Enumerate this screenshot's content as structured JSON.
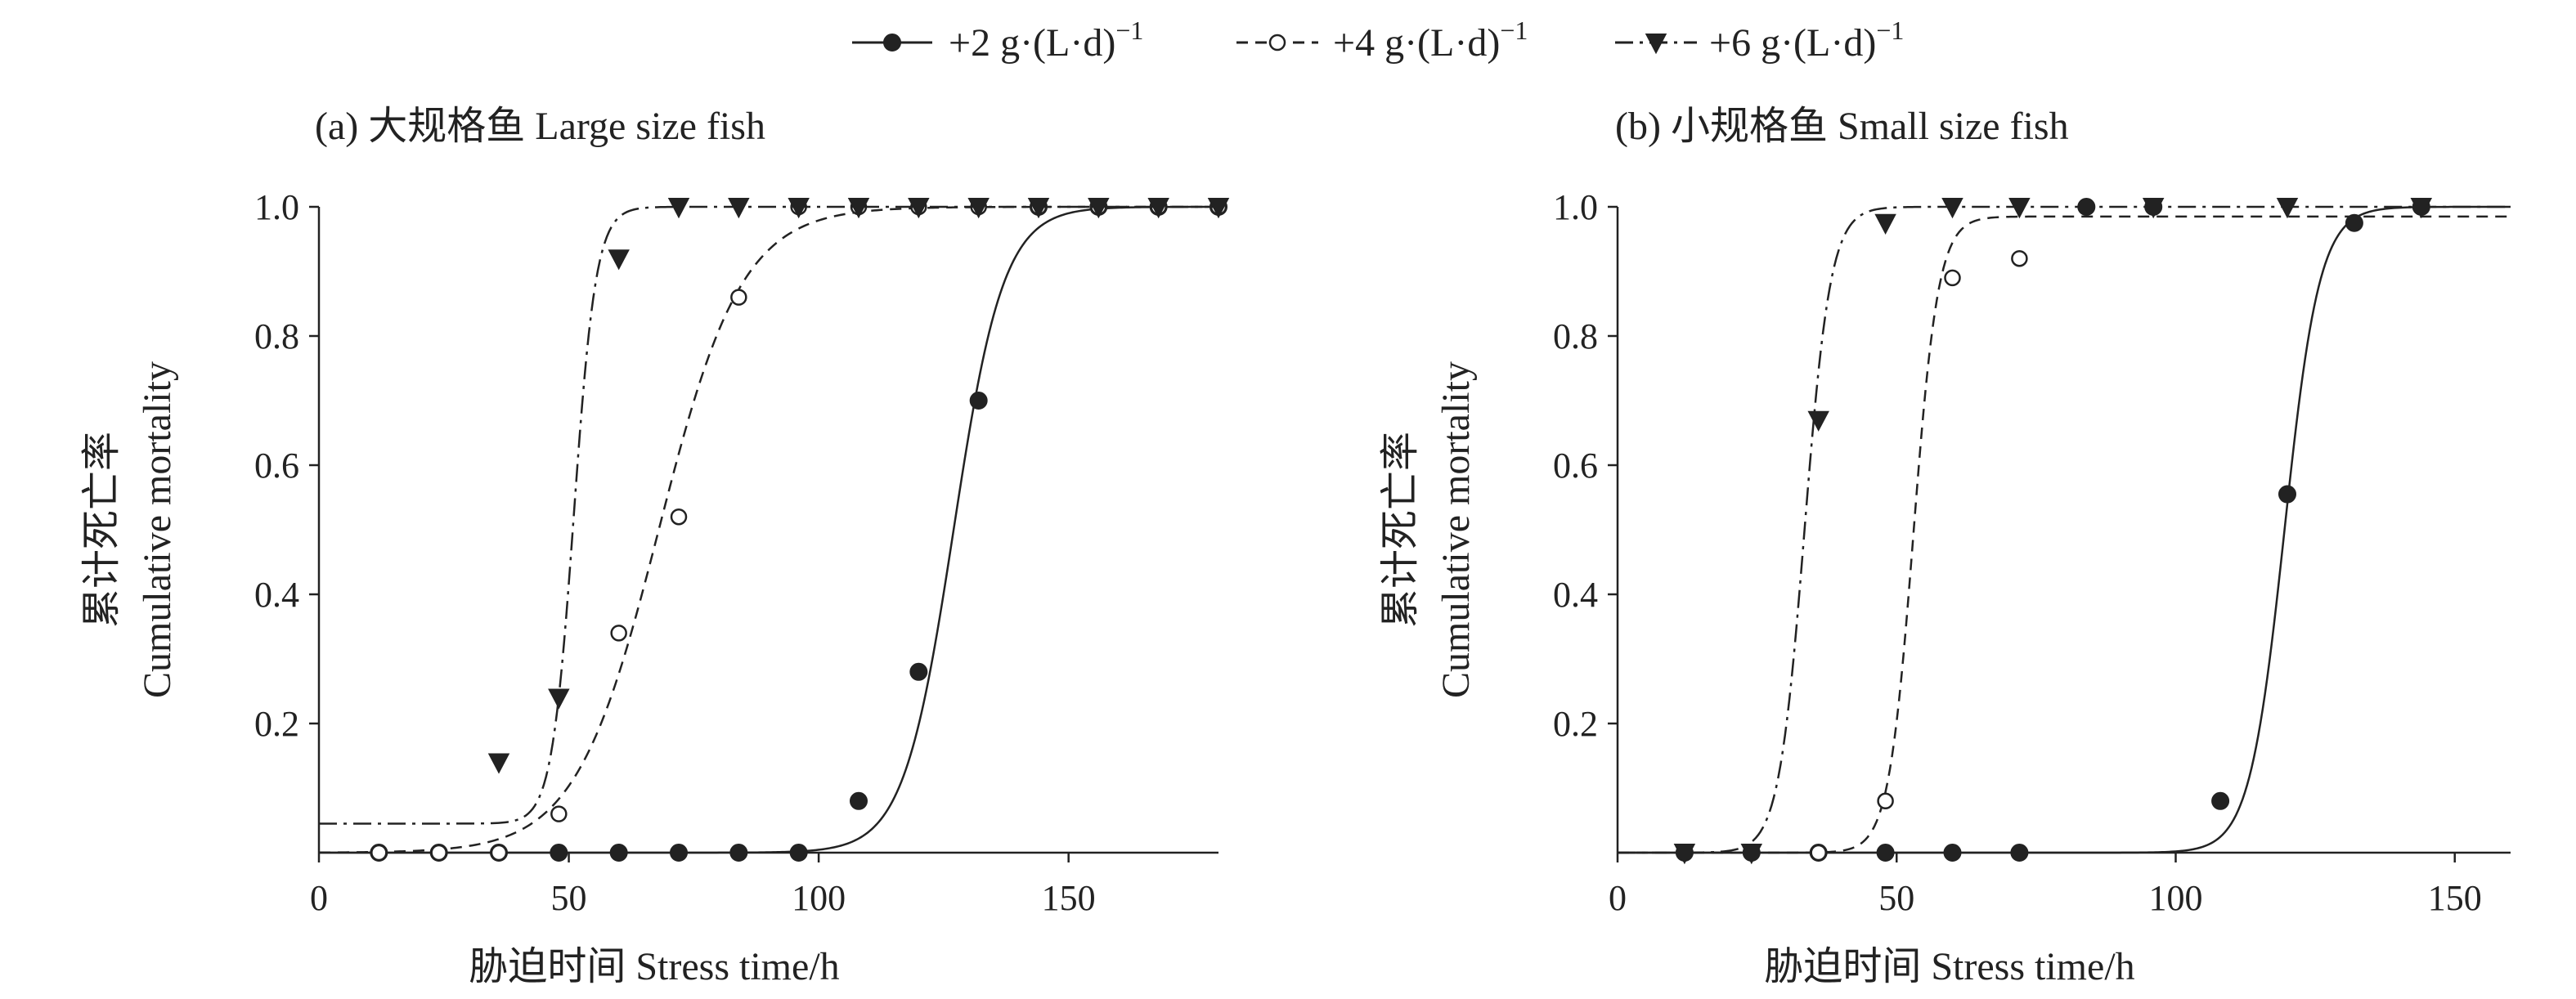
{
  "legend": [
    {
      "key": "g2",
      "label": "+2 g·(L·d)",
      "exponent": "−1",
      "marker": "filled-circle",
      "line": "solid"
    },
    {
      "key": "g4",
      "label": "+4 g·(L·d)",
      "exponent": "−1",
      "marker": "open-circle",
      "line": "dashed"
    },
    {
      "key": "g6",
      "label": "+6 g·(L·d)",
      "exponent": "−1",
      "marker": "filled-triangle",
      "line": "dashdot"
    }
  ],
  "chart_data": [
    {
      "type": "scatter",
      "title": "(a) 大规格鱼 Large size fish",
      "xlabel": "胁迫时间 Stress time/h",
      "ylabel_cn": "累计死亡率",
      "ylabel_en": "Cumulative mortality",
      "xlim": [
        0,
        180
      ],
      "ylim": [
        0,
        1.0
      ],
      "xticks": [
        0,
        50,
        100,
        150
      ],
      "xtick_labels": [
        "0",
        "50",
        "100",
        "150"
      ],
      "yticks": [
        0.2,
        0.4,
        0.6,
        0.8,
        1.0
      ],
      "ytick_labels": [
        "0.2",
        "0.4",
        "0.6",
        "0.8",
        "1.0"
      ],
      "series": [
        {
          "name": "+2 g·(L·d)−1",
          "x": [
            12,
            24,
            36,
            48,
            60,
            72,
            84,
            96,
            108,
            120,
            132,
            144,
            156,
            168,
            180
          ],
          "y": [
            0,
            0,
            0,
            0,
            0,
            0,
            0,
            0,
            0.08,
            0.28,
            0.7,
            1.0,
            1.0,
            1.0,
            1.0
          ],
          "fit": {
            "model": "logistic",
            "lower": 0.0,
            "upper": 1.0,
            "midpoint": 127,
            "slope": 0.2
          }
        },
        {
          "name": "+4 g·(L·d)−1",
          "x": [
            12,
            24,
            36,
            48,
            60,
            72,
            84,
            96,
            108,
            120,
            132,
            144,
            156,
            168,
            180
          ],
          "y": [
            0,
            0,
            0,
            0.06,
            0.34,
            0.52,
            0.86,
            1.0,
            1.0,
            1.0,
            1.0,
            1.0,
            1.0,
            1.0,
            1.0
          ],
          "fit": {
            "model": "logistic",
            "lower": 0.0,
            "upper": 1.0,
            "midpoint": 68,
            "slope": 0.12
          }
        },
        {
          "name": "+6 g·(L·d)−1",
          "x": [
            36,
            48,
            60,
            72,
            84,
            96,
            108,
            120,
            132,
            144,
            156,
            168,
            180
          ],
          "y": [
            0.14,
            0.24,
            0.92,
            1.0,
            1.0,
            1.0,
            1.0,
            1.0,
            1.0,
            1.0,
            1.0,
            1.0,
            1.0
          ],
          "fit": {
            "model": "logistic",
            "lower": 0.045,
            "upper": 1.0,
            "midpoint": 51,
            "slope": 0.45
          }
        }
      ]
    },
    {
      "type": "scatter",
      "title": "(b) 小规格鱼 Small size fish",
      "xlabel": "胁迫时间 Stress time/h",
      "ylabel_cn": "累计死亡率",
      "ylabel_en": "Cumulative mortality",
      "xlim": [
        0,
        160
      ],
      "ylim": [
        0,
        1.0
      ],
      "xticks": [
        0,
        50,
        100,
        150
      ],
      "xtick_labels": [
        "0",
        "50",
        "100",
        "150"
      ],
      "yticks": [
        0.2,
        0.4,
        0.6,
        0.8,
        1.0
      ],
      "ytick_labels": [
        "0.2",
        "0.4",
        "0.6",
        "0.8",
        "1.0"
      ],
      "series": [
        {
          "name": "+2 g·(L·d)−1",
          "x": [
            12,
            24,
            36,
            48,
            60,
            72,
            84,
            96,
            108,
            120,
            132,
            144
          ],
          "y": [
            0,
            0,
            0,
            0,
            0,
            0,
            1.0,
            1.0,
            0.08,
            0.555,
            0.975,
            1.0
          ],
          "fit": {
            "model": "logistic",
            "lower": 0.0,
            "upper": 1.0,
            "midpoint": 119.5,
            "slope": 0.32
          }
        },
        {
          "name": "+4 g·(L·d)−1",
          "x": [
            36,
            48,
            60,
            72
          ],
          "y": [
            0,
            0.08,
            0.89,
            0.92
          ],
          "fit": {
            "model": "logistic",
            "lower": 0.0,
            "upper": 0.985,
            "midpoint": 53,
            "slope": 0.45
          }
        },
        {
          "name": "+6 g·(L·d)−1",
          "x": [
            12,
            24,
            36,
            48,
            60,
            72,
            96,
            120,
            144
          ],
          "y": [
            0,
            0,
            0.67,
            0.975,
            1.0,
            1.0,
            1.0,
            1.0,
            1.0
          ],
          "fit": {
            "model": "logistic",
            "lower": 0.0,
            "upper": 1.0,
            "midpoint": 33.5,
            "slope": 0.43
          }
        }
      ]
    }
  ]
}
